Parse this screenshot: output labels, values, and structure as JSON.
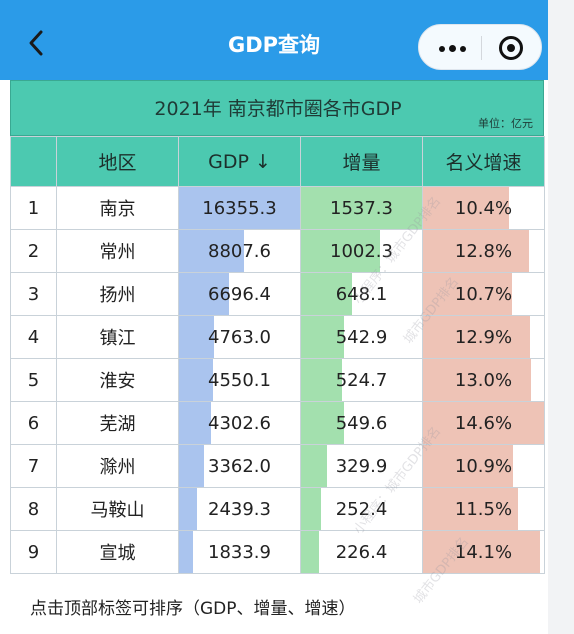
{
  "header": {
    "title": "GDP查询",
    "accent": "#2b9be8"
  },
  "table": {
    "caption": "2021年 南京都市圈各市GDP",
    "unit": "单位：亿元",
    "header_color": "#4cc9b0",
    "columns": [
      "",
      "地区",
      "GDP ↓",
      "增量",
      "名义增速"
    ],
    "bar_colors": {
      "gdp": "#aac4ee",
      "increment": "#a3e0ae",
      "growth": "#eec3b6"
    },
    "rows": [
      {
        "rank": "1",
        "region": "南京",
        "gdp": "16355.3",
        "increment": "1537.3",
        "growth": "10.4%"
      },
      {
        "rank": "2",
        "region": "常州",
        "gdp": "8807.6",
        "increment": "1002.3",
        "growth": "12.8%"
      },
      {
        "rank": "3",
        "region": "扬州",
        "gdp": "6696.4",
        "increment": "648.1",
        "growth": "10.7%"
      },
      {
        "rank": "4",
        "region": "镇江",
        "gdp": "4763.0",
        "increment": "542.9",
        "growth": "12.9%"
      },
      {
        "rank": "5",
        "region": "淮安",
        "gdp": "4550.1",
        "increment": "524.7",
        "growth": "13.0%"
      },
      {
        "rank": "6",
        "region": "芜湖",
        "gdp": "4302.6",
        "increment": "549.6",
        "growth": "14.6%"
      },
      {
        "rank": "7",
        "region": "滁州",
        "gdp": "3362.0",
        "increment": "329.9",
        "growth": "10.9%"
      },
      {
        "rank": "8",
        "region": "马鞍山",
        "gdp": "2439.3",
        "increment": "252.4",
        "growth": "11.5%"
      },
      {
        "rank": "9",
        "region": "宣城",
        "gdp": "1833.9",
        "increment": "226.4",
        "growth": "14.1%"
      }
    ]
  },
  "watermark": {
    "text_a": "小程序：城市GDP排名",
    "text_b": "城市GDP排名"
  },
  "footer": {
    "note": "点击顶部标签可排序（GDP、增量、增速）"
  }
}
